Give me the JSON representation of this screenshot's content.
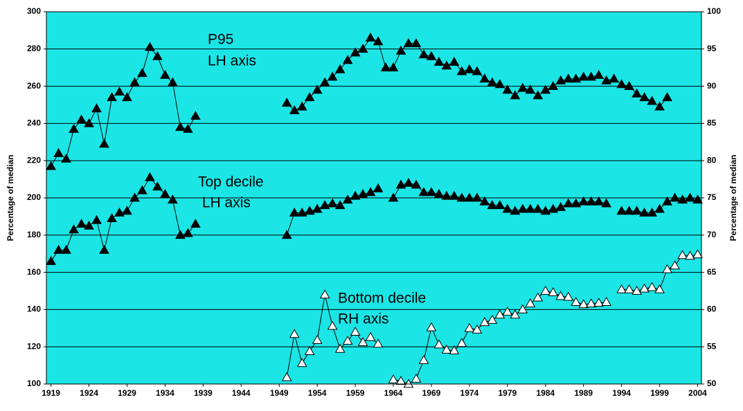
{
  "chart_data": {
    "type": "line",
    "y_label": "Percentage of median",
    "y2_label": "Percentage of median",
    "annotations": [
      "P95",
      "LH axis",
      "Top decile",
      " LH axis",
      "Bottom decile",
      "RH axis"
    ],
    "background": "#1ce5e5",
    "grid": true,
    "xlim": [
      1918.4,
      2004.5
    ],
    "xticks": [
      1919,
      1924,
      1929,
      1934,
      1939,
      1944,
      1949,
      1954,
      1959,
      1964,
      1969,
      1974,
      1979,
      1984,
      1989,
      1994,
      1999,
      2004
    ],
    "ylim": [
      100,
      300
    ],
    "yticks": [
      100,
      120,
      140,
      160,
      180,
      200,
      220,
      240,
      260,
      280,
      300
    ],
    "y2lim": [
      50,
      100
    ],
    "y2ticks": [
      50,
      55,
      60,
      65,
      70,
      75,
      80,
      85,
      90,
      95,
      100
    ],
    "x": [
      1919,
      1920,
      1921,
      1922,
      1923,
      1924,
      1925,
      1926,
      1927,
      1928,
      1929,
      1930,
      1931,
      1932,
      1933,
      1934,
      1935,
      1936,
      1937,
      1938,
      1939,
      1940,
      1941,
      1942,
      1943,
      1944,
      1945,
      1946,
      1947,
      1948,
      1949,
      1950,
      1951,
      1952,
      1953,
      1954,
      1955,
      1956,
      1957,
      1958,
      1959,
      1960,
      1961,
      1962,
      1963,
      1964,
      1965,
      1966,
      1967,
      1968,
      1969,
      1970,
      1971,
      1972,
      1973,
      1974,
      1975,
      1976,
      1977,
      1978,
      1979,
      1980,
      1981,
      1982,
      1983,
      1984,
      1985,
      1986,
      1987,
      1988,
      1989,
      1990,
      1991,
      1992,
      1993,
      1994,
      1995,
      1996,
      1997,
      1998,
      1999,
      2000,
      2001,
      2002,
      2003,
      2004
    ],
    "series": [
      {
        "color": "#000000",
        "marker_fill": "#000000",
        "values": [
          217,
          224,
          221,
          237,
          242,
          240,
          248,
          229,
          254,
          257,
          254,
          262,
          267,
          281,
          276,
          266,
          262,
          238,
          237,
          244,
          null,
          null,
          null,
          null,
          null,
          null,
          null,
          null,
          null,
          null,
          null,
          251,
          247,
          249,
          254,
          258,
          262,
          265,
          269,
          274,
          278,
          280,
          286,
          284,
          270,
          270,
          279,
          283,
          283,
          277,
          276,
          273,
          271,
          273,
          268,
          269,
          268,
          264,
          262,
          261,
          258,
          255,
          259,
          258,
          255,
          258,
          260,
          263,
          264,
          264,
          265,
          265,
          266,
          263,
          264,
          261,
          260,
          256,
          254,
          252,
          249,
          254,
          null,
          null,
          null,
          null
        ]
      },
      {
        "color": "#000000",
        "marker_fill": "#000000",
        "values": [
          166,
          172,
          172,
          183,
          186,
          185,
          188,
          172,
          189,
          192,
          193,
          200,
          204,
          211,
          206,
          202,
          199,
          180,
          181,
          186,
          null,
          null,
          null,
          null,
          null,
          null,
          null,
          null,
          null,
          null,
          null,
          180,
          192,
          192,
          193,
          194,
          196,
          197,
          196,
          199,
          201,
          202,
          203,
          205,
          null,
          200,
          207,
          208,
          207,
          203,
          203,
          202,
          201,
          201,
          200,
          200,
          200,
          198,
          196,
          196,
          194,
          193,
          194,
          194,
          194,
          193,
          194,
          195,
          197,
          197,
          198,
          198,
          198,
          197,
          null,
          193,
          193,
          193,
          192,
          192,
          194,
          198,
          200,
          199,
          200,
          199
        ]
      },
      {
        "color": "#000000",
        "marker_fill": "#ffffff",
        "axis": "y2",
        "values": [
          null,
          null,
          null,
          null,
          null,
          null,
          null,
          null,
          null,
          null,
          null,
          null,
          null,
          null,
          null,
          null,
          null,
          null,
          null,
          null,
          null,
          null,
          null,
          null,
          null,
          null,
          null,
          null,
          null,
          null,
          null,
          50.9,
          56.7,
          52.8,
          54.4,
          55.9,
          62.0,
          57.8,
          54.7,
          55.8,
          57.0,
          55.6,
          56.3,
          55.4,
          null,
          50.6,
          50.4,
          50.0,
          50.7,
          53.2,
          57.6,
          55.3,
          54.6,
          54.5,
          55.5,
          57.5,
          57.3,
          58.3,
          58.6,
          59.3,
          59.7,
          59.3,
          60.0,
          60.8,
          61.6,
          62.5,
          62.3,
          61.8,
          61.7,
          61.0,
          60.7,
          60.8,
          60.9,
          61.0,
          null,
          62.7,
          62.7,
          62.5,
          62.8,
          63.0,
          62.7,
          65.4,
          65.9,
          67.3,
          67.2,
          67.4
        ]
      }
    ]
  }
}
